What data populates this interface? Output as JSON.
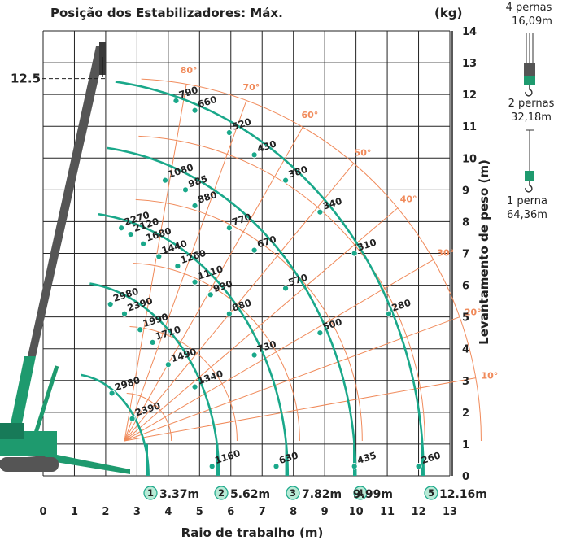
{
  "colors": {
    "radius_curve": "#1aa88a",
    "angle_line": "#f08a5a",
    "boom_dark": "#555555",
    "boom_green": "#1e9a6e",
    "grid": "#222222"
  },
  "legend": {
    "items": [
      {
        "pernas": "4 pernas",
        "length": "16,09m",
        "icon": "four-line-hook-icon"
      },
      {
        "pernas": "2 pernas",
        "length": "32,18m",
        "icon": "two-line-hook-icon"
      },
      {
        "pernas": "1 perna",
        "length": "64,36m",
        "icon": "single-line-hook-icon"
      }
    ]
  },
  "chart_data": {
    "type": "line",
    "title": "Posição dos Estabilizadores: Máx.",
    "unit_label": "(kg)",
    "xlabel": "Raio de trabalho (m)",
    "ylabel": "Levantamento de peso (m)",
    "xlim": [
      0,
      13
    ],
    "ylim": [
      0,
      14
    ],
    "x_ticks": [
      "0",
      "1",
      "2",
      "3",
      "4",
      "5",
      "6",
      "7",
      "8",
      "9",
      "10",
      "11",
      "12",
      "13"
    ],
    "y_ticks": [
      "0",
      "1",
      "2",
      "3",
      "4",
      "5",
      "6",
      "7",
      "8",
      "9",
      "10",
      "11",
      "12",
      "13",
      "14"
    ],
    "height_marker": {
      "label": "12.5",
      "y": 12.5
    },
    "boom_angles": [
      "10°",
      "20°",
      "30°",
      "40°",
      "50°",
      "60°",
      "70°",
      "80°"
    ],
    "radius_markers": [
      {
        "num": "1",
        "label": "3.37m"
      },
      {
        "num": "2",
        "label": "5.62m"
      },
      {
        "num": "3",
        "label": "7.82m"
      },
      {
        "num": "4",
        "label": "9.99m"
      },
      {
        "num": "5",
        "label": "12.16m"
      }
    ],
    "series": [
      {
        "points": [
          {
            "x": 2.2,
            "y": 2.6,
            "label": "2980"
          },
          {
            "x": 2.85,
            "y": 1.8,
            "label": "2390"
          }
        ]
      },
      {
        "points": [
          {
            "x": 2.15,
            "y": 5.4,
            "label": "2980"
          },
          {
            "x": 2.6,
            "y": 5.1,
            "label": "2390"
          },
          {
            "x": 3.1,
            "y": 4.6,
            "label": "1990"
          },
          {
            "x": 3.5,
            "y": 4.2,
            "label": "1710"
          },
          {
            "x": 4.0,
            "y": 3.5,
            "label": "1490"
          },
          {
            "x": 4.85,
            "y": 2.8,
            "label": "1340"
          },
          {
            "x": 5.4,
            "y": 0.3,
            "label": "1160"
          }
        ]
      },
      {
        "points": [
          {
            "x": 2.5,
            "y": 7.8,
            "label": "2270"
          },
          {
            "x": 2.8,
            "y": 7.6,
            "label": "2120"
          },
          {
            "x": 3.2,
            "y": 7.3,
            "label": "1680"
          },
          {
            "x": 3.7,
            "y": 6.9,
            "label": "1440"
          },
          {
            "x": 4.3,
            "y": 6.6,
            "label": "1260"
          },
          {
            "x": 4.85,
            "y": 6.1,
            "label": "1110"
          },
          {
            "x": 5.35,
            "y": 5.7,
            "label": "990"
          },
          {
            "x": 5.95,
            "y": 5.1,
            "label": "880"
          },
          {
            "x": 6.75,
            "y": 3.8,
            "label": "730"
          },
          {
            "x": 7.45,
            "y": 0.3,
            "label": "630"
          }
        ]
      },
      {
        "points": [
          {
            "x": 3.9,
            "y": 9.3,
            "label": "1080"
          },
          {
            "x": 4.55,
            "y": 9.0,
            "label": "985"
          },
          {
            "x": 4.85,
            "y": 8.5,
            "label": "880"
          },
          {
            "x": 5.95,
            "y": 7.8,
            "label": "770"
          },
          {
            "x": 6.75,
            "y": 7.1,
            "label": "670"
          },
          {
            "x": 7.75,
            "y": 5.9,
            "label": "570"
          },
          {
            "x": 8.85,
            "y": 4.5,
            "label": "500"
          },
          {
            "x": 9.95,
            "y": 0.3,
            "label": "435"
          }
        ]
      },
      {
        "points": [
          {
            "x": 4.25,
            "y": 11.8,
            "label": "790"
          },
          {
            "x": 4.85,
            "y": 11.5,
            "label": "660"
          },
          {
            "x": 5.95,
            "y": 10.8,
            "label": "520"
          },
          {
            "x": 6.75,
            "y": 10.1,
            "label": "430"
          },
          {
            "x": 7.75,
            "y": 9.3,
            "label": "380"
          },
          {
            "x": 8.85,
            "y": 8.3,
            "label": "340"
          },
          {
            "x": 9.95,
            "y": 7.0,
            "label": "310"
          },
          {
            "x": 11.05,
            "y": 5.1,
            "label": "280"
          },
          {
            "x": 12.0,
            "y": 0.3,
            "label": "260"
          }
        ]
      }
    ]
  }
}
